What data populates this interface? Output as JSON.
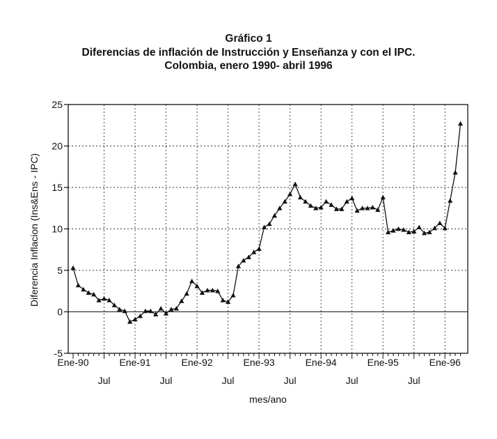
{
  "chart_data": {
    "type": "line",
    "title": "Gráfico 1",
    "subtitle_lines": [
      "Diferencias de inflación de Instrucción y Enseñanza  y con el IPC.",
      "Colombia, enero 1990- abril 1996"
    ],
    "xlabel": "mes/ano",
    "ylabel": "Diferencia Inflacion (Ins&Ens - IPC)",
    "ylim": [
      -5,
      25
    ],
    "yticks": [
      -5,
      0,
      5,
      10,
      15,
      20,
      25
    ],
    "grid": true,
    "marker": "triangle",
    "x_ticks_top_row": [
      {
        "label": "Ene-90",
        "index": 0
      },
      {
        "label": "Ene-91",
        "index": 12
      },
      {
        "label": "Ene-92",
        "index": 24
      },
      {
        "label": "Ene-93",
        "index": 36
      },
      {
        "label": "Ene-94",
        "index": 48
      },
      {
        "label": "Ene-95",
        "index": 60
      },
      {
        "label": "Ene-96",
        "index": 72
      }
    ],
    "x_ticks_bottom_row": [
      {
        "label": "Jul",
        "index": 6
      },
      {
        "label": "Jul",
        "index": 18
      },
      {
        "label": "Jul",
        "index": 30
      },
      {
        "label": "Jul",
        "index": 42
      },
      {
        "label": "Jul",
        "index": 54
      },
      {
        "label": "Jul",
        "index": 66
      }
    ],
    "series": [
      {
        "values": [
          5.3,
          3.2,
          2.7,
          2.3,
          2.1,
          1.4,
          1.6,
          1.4,
          0.8,
          0.3,
          0.1,
          -1.2,
          -0.9,
          -0.5,
          0.1,
          0.1,
          -0.3,
          0.4,
          -0.2,
          0.3,
          0.4,
          1.3,
          2.2,
          3.7,
          3.1,
          2.3,
          2.6,
          2.6,
          2.5,
          1.4,
          1.2,
          2.0,
          5.5,
          6.2,
          6.6,
          7.2,
          7.6,
          10.2,
          10.6,
          11.6,
          12.5,
          13.3,
          14.2,
          15.4,
          13.8,
          13.3,
          12.8,
          12.5,
          12.6,
          13.3,
          12.9,
          12.4,
          12.4,
          13.3,
          13.7,
          12.2,
          12.5,
          12.5,
          12.6,
          12.3,
          13.8,
          9.6,
          9.8,
          10.0,
          9.9,
          9.6,
          9.7,
          10.2,
          9.5,
          9.6,
          10.1,
          10.7,
          10.1,
          13.4,
          16.8,
          22.7
        ]
      }
    ]
  }
}
